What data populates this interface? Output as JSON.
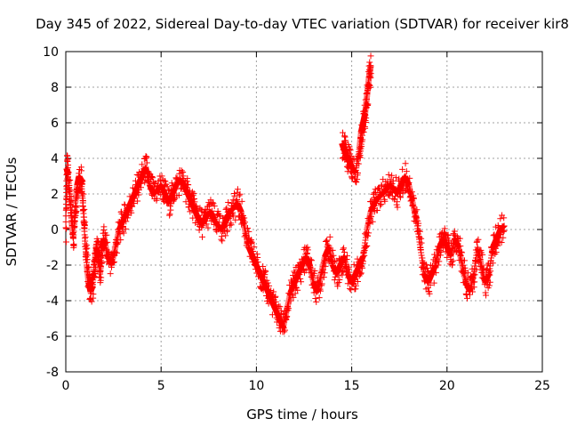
{
  "chart_data": {
    "type": "scatter",
    "title": "Day 345 of 2022, Sidereal Day-to-day VTEC variation (SDTVAR) for receiver kir8",
    "xlabel": "GPS time / hours",
    "ylabel": "SDTVAR / TECUs",
    "xlim": [
      0,
      25
    ],
    "ylim": [
      -8,
      10
    ],
    "xticks": [
      0,
      5,
      10,
      15,
      20,
      25
    ],
    "yticks": [
      -8,
      -6,
      -4,
      -2,
      0,
      2,
      4,
      6,
      8,
      10
    ],
    "grid": true,
    "marker": "+",
    "series": [
      {
        "name": "SDTVAR",
        "color": "#ff0000",
        "x": [
          0.0,
          0.05,
          0.1,
          0.2,
          0.3,
          0.4,
          0.5,
          0.6,
          0.7,
          0.8,
          0.9,
          1.0,
          1.1,
          1.2,
          1.3,
          1.4,
          1.5,
          1.6,
          1.7,
          1.8,
          1.9,
          2.0,
          2.2,
          2.4,
          2.6,
          2.8,
          3.0,
          3.2,
          3.4,
          3.6,
          3.8,
          4.0,
          4.2,
          4.4,
          4.6,
          4.8,
          5.0,
          5.2,
          5.4,
          5.6,
          5.8,
          6.0,
          6.2,
          6.4,
          6.6,
          6.8,
          7.0,
          7.2,
          7.4,
          7.6,
          7.8,
          8.0,
          8.2,
          8.4,
          8.6,
          8.8,
          9.0,
          9.2,
          9.4,
          9.6,
          9.8,
          10.0,
          10.2,
          10.4,
          10.6,
          10.8,
          11.0,
          11.2,
          11.4,
          11.6,
          11.8,
          12.0,
          12.2,
          12.4,
          12.6,
          12.8,
          13.0,
          13.2,
          13.4,
          13.6,
          13.8,
          14.0,
          14.2,
          14.4,
          14.6,
          14.8,
          15.0,
          15.2,
          15.4,
          15.6,
          15.8,
          16.0,
          16.2,
          16.4,
          16.6,
          16.8,
          17.0,
          17.2,
          17.4,
          17.6,
          17.8,
          18.0,
          18.2,
          18.4,
          18.6,
          18.8,
          19.0,
          19.2,
          19.4,
          19.6,
          19.8,
          20.0,
          20.2,
          20.4,
          20.6,
          20.8,
          21.0,
          21.2,
          21.4,
          21.6,
          21.8,
          22.0,
          22.2,
          22.4,
          22.6,
          22.8,
          23.0
        ],
        "y": [
          0.1,
          3.4,
          3.2,
          2.0,
          0.5,
          -0.5,
          1.5,
          2.5,
          3.0,
          2.8,
          1.5,
          -0.5,
          -2.0,
          -3.0,
          -3.5,
          -3.2,
          -2.0,
          -1.0,
          -1.5,
          -2.5,
          -1.0,
          -0.5,
          -1.5,
          -2.0,
          -1.0,
          0.0,
          0.5,
          1.0,
          1.5,
          2.0,
          2.5,
          3.0,
          3.5,
          2.5,
          2.0,
          2.2,
          2.5,
          2.0,
          1.5,
          2.0,
          2.5,
          2.8,
          2.5,
          2.0,
          1.5,
          1.0,
          0.5,
          0.3,
          0.8,
          1.0,
          0.5,
          0.2,
          0.0,
          0.5,
          1.0,
          1.2,
          1.5,
          1.0,
          0.0,
          -1.0,
          -1.5,
          -2.0,
          -2.5,
          -3.0,
          -3.5,
          -4.0,
          -4.5,
          -5.0,
          -5.5,
          -4.5,
          -3.5,
          -3.0,
          -2.5,
          -2.0,
          -1.5,
          -2.0,
          -3.0,
          -3.5,
          -2.5,
          -1.5,
          -1.0,
          -2.0,
          -2.5,
          -2.0,
          -1.5,
          -2.5,
          -3.0,
          -2.5,
          -2.0,
          -1.5,
          0.0,
          1.0,
          1.5,
          1.8,
          2.0,
          2.2,
          2.5,
          2.3,
          2.0,
          2.5,
          3.0,
          2.5,
          1.5,
          0.5,
          -1.0,
          -2.5,
          -3.0,
          -2.5,
          -2.0,
          -1.0,
          -0.5,
          -1.0,
          -1.5,
          -0.5,
          -1.0,
          -2.0,
          -3.0,
          -3.5,
          -2.5,
          -1.0,
          -2.0,
          -3.0,
          -2.5,
          -1.0,
          -0.5,
          0.0,
          0.2
        ],
        "cloud_x": [
          14.5,
          14.6,
          14.7,
          14.8,
          14.9,
          15.0,
          15.2,
          15.4,
          15.5,
          15.6,
          15.7,
          15.8,
          15.9,
          16.0
        ],
        "cloud_y": [
          4.8,
          4.5,
          4.2,
          4.0,
          3.8,
          3.5,
          3.2,
          4.5,
          5.5,
          6.0,
          6.5,
          7.5,
          8.5,
          9.2
        ]
      }
    ]
  }
}
